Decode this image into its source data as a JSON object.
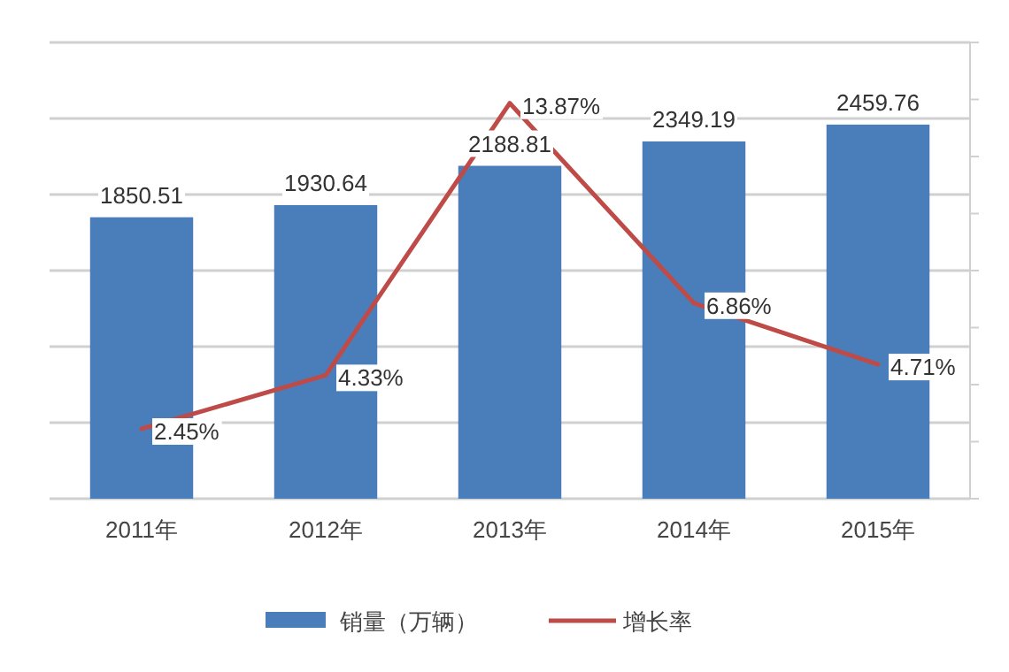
{
  "chart_data": {
    "type": "bar",
    "categories": [
      "2011年",
      "2012年",
      "2013年",
      "2014年",
      "2015年"
    ],
    "series": [
      {
        "name": "销量（万辆）",
        "color": "#4a7ebb",
        "values": [
          1850.51,
          1930.64,
          2188.81,
          2349.19,
          2459.76
        ],
        "value_labels": [
          "1850.51",
          "1930.64",
          "2188.81",
          "2349.19",
          "2459.76"
        ]
      },
      {
        "name": "增长率",
        "type": "line",
        "axis": "y2",
        "color": "#be4b48",
        "values": [
          2.45,
          4.33,
          13.87,
          6.86,
          4.71
        ],
        "value_labels": [
          "2.45%",
          "4.33%",
          "13.87%",
          "6.86%",
          "4.71%"
        ]
      }
    ],
    "ylim": [
      0,
      3000
    ],
    "yticks": [
      {
        "value": 0,
        "label": null
      },
      {
        "value": 500,
        "label": null
      },
      {
        "value": 1000,
        "label": null
      },
      {
        "value": 1500,
        "label": null
      },
      {
        "value": 2000,
        "label": null
      },
      {
        "value": 2500,
        "label": null
      },
      {
        "value": 3000,
        "label": null
      }
    ],
    "y2lim": [
      0,
      16
    ],
    "y2ticks": [
      {
        "value": 0,
        "label": null
      },
      {
        "value": 2,
        "label": null
      },
      {
        "value": 4,
        "label": null
      },
      {
        "value": 6,
        "label": null
      },
      {
        "value": 8,
        "label": null
      },
      {
        "value": 10,
        "label": null
      },
      {
        "value": 12,
        "label": null
      },
      {
        "value": 14,
        "label": null
      },
      {
        "value": 16,
        "label": null
      }
    ],
    "grid": "y",
    "legend": "bottom",
    "tick_labels": "x"
  }
}
